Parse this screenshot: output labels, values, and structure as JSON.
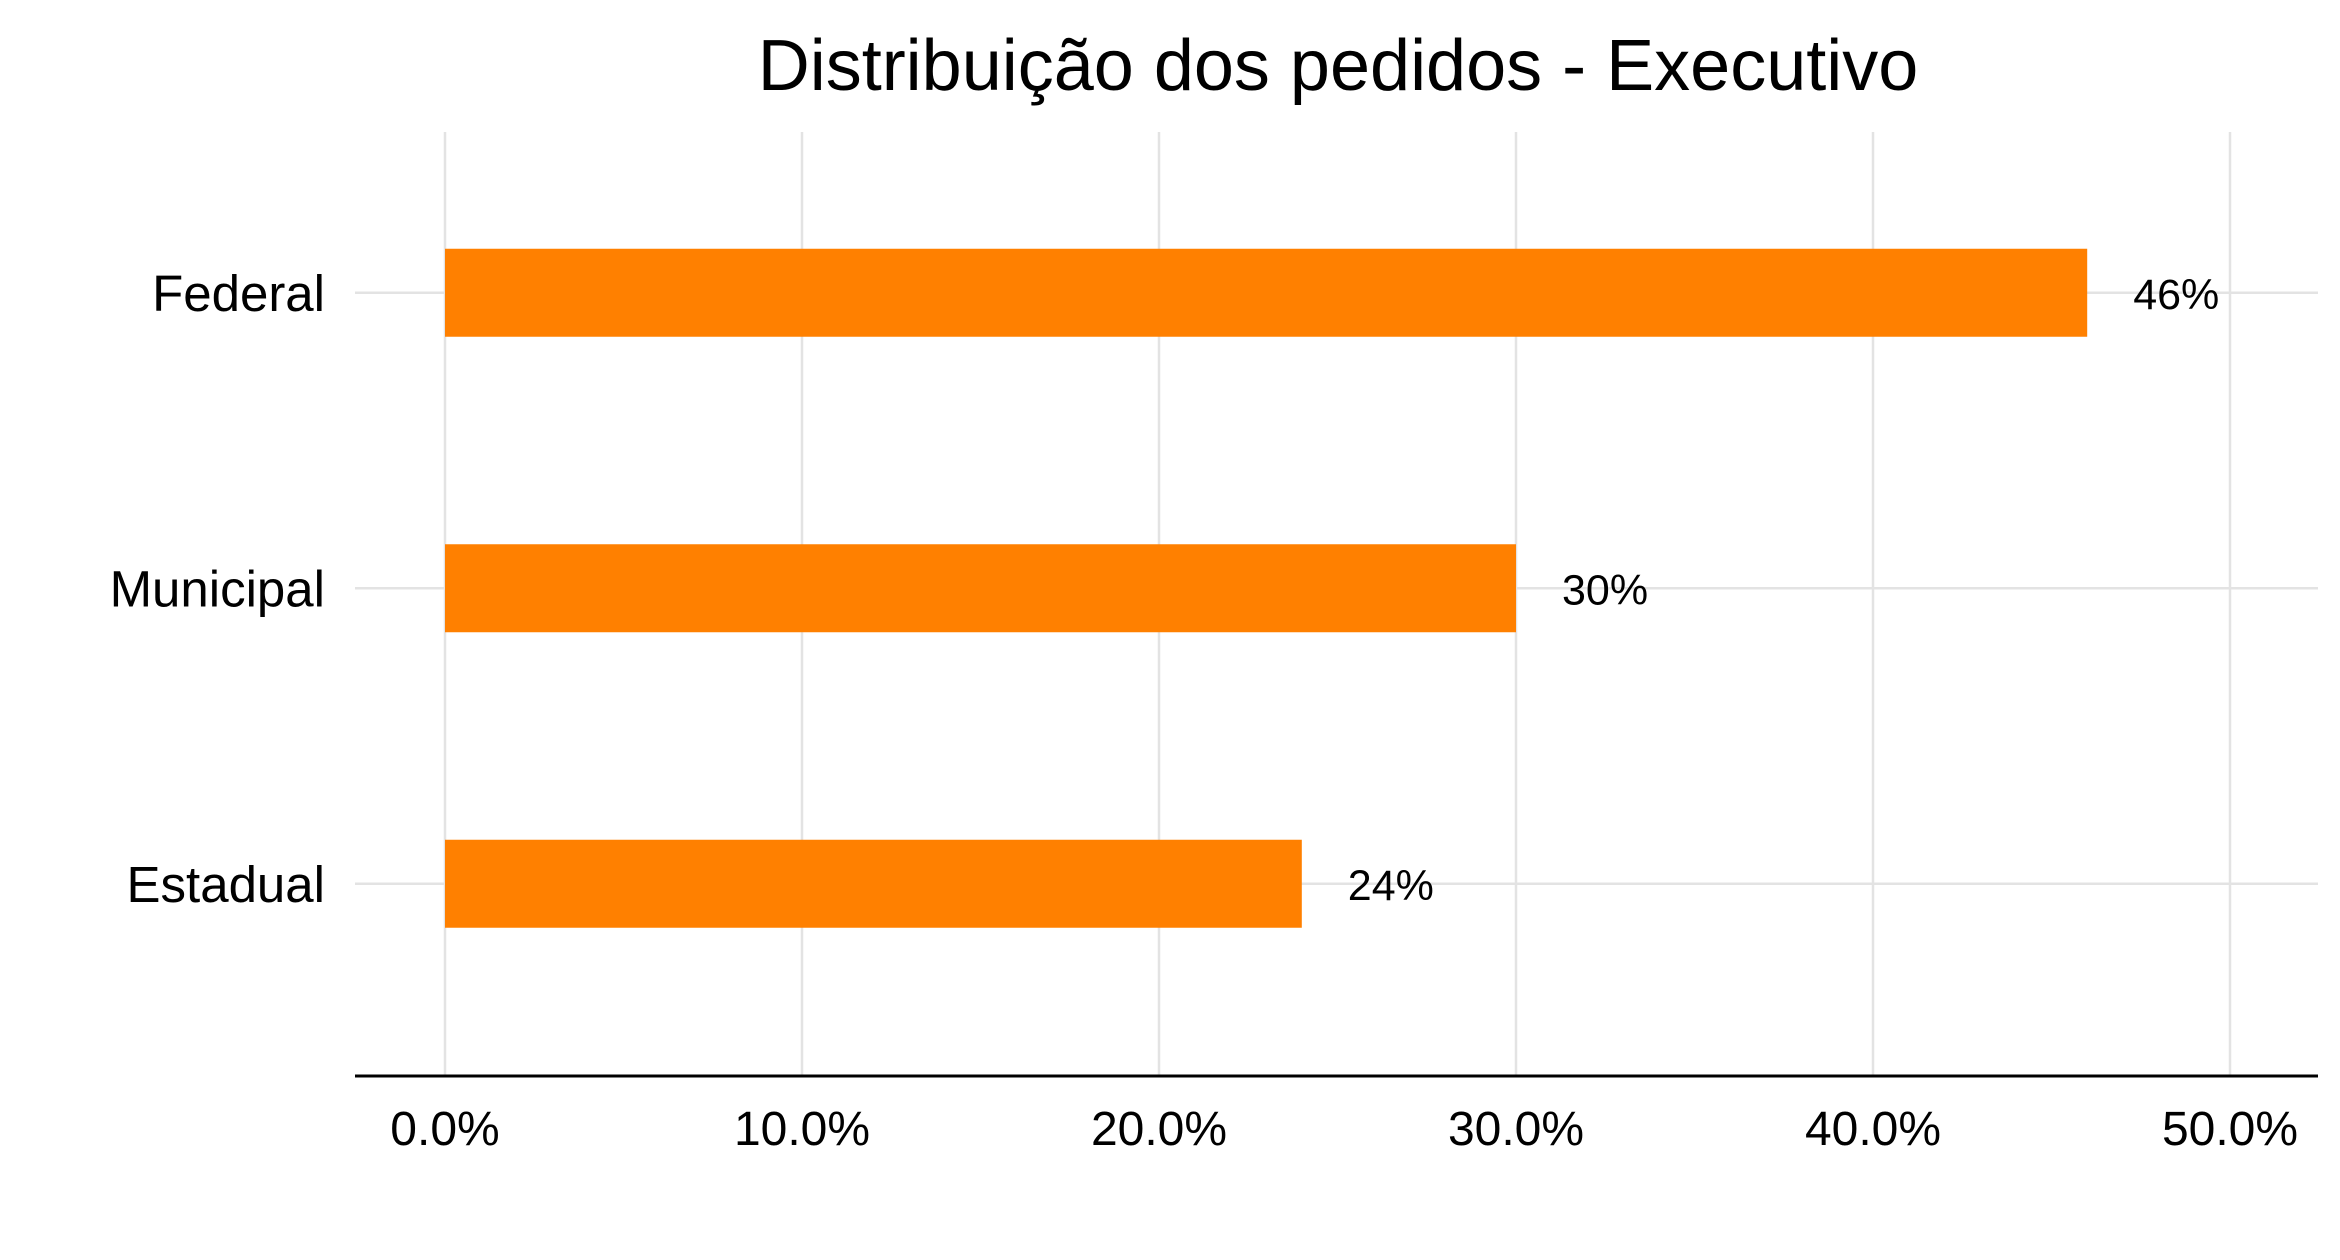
{
  "chart_data": {
    "type": "bar",
    "orientation": "horizontal",
    "title": "Distribuição dos pedidos - Executivo",
    "xlabel": "",
    "ylabel": "",
    "categories": [
      "Federal",
      "Municipal",
      "Estadual"
    ],
    "values": [
      46,
      30,
      24
    ],
    "data_labels": [
      "46%",
      "30%",
      "24%"
    ],
    "x_ticks": [
      0,
      10,
      20,
      30,
      40,
      50
    ],
    "x_tick_labels": [
      "0.0%",
      "10.0%",
      "20.0%",
      "30.0%",
      "40.0%",
      "50.0%"
    ],
    "xlim": [
      0,
      50
    ],
    "grid": true,
    "legend": "none",
    "bar_color": "#ff8000",
    "grid_color": "#e3e3e3",
    "axis_color": "#000000"
  }
}
